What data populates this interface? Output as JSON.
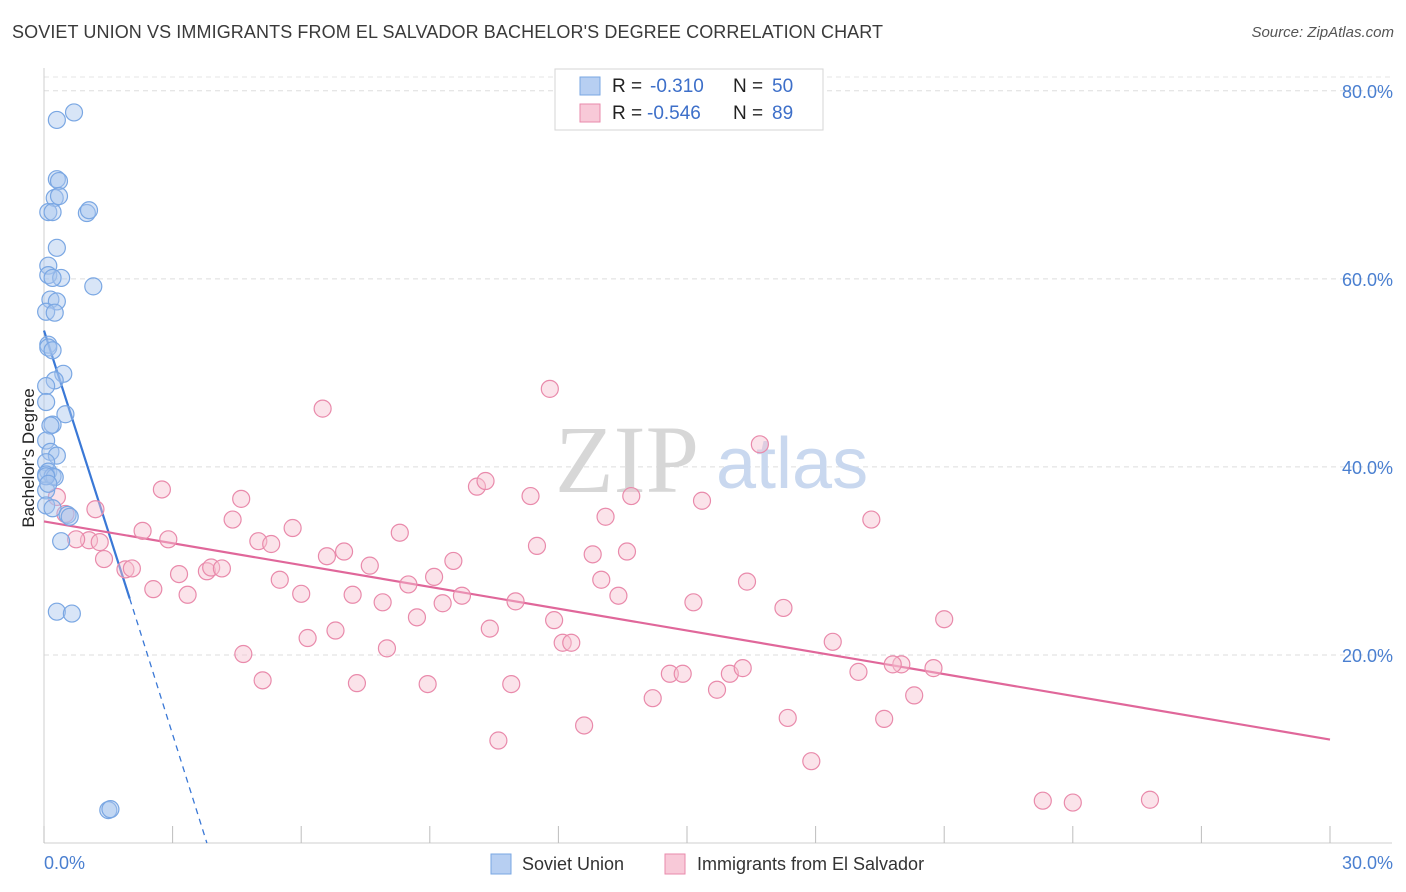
{
  "header": {
    "title": "SOVIET UNION VS IMMIGRANTS FROM EL SALVADOR BACHELOR'S DEGREE CORRELATION CHART",
    "source": "Source: ZipAtlas.com"
  },
  "watermark": {
    "zip": "ZIP",
    "atlas": "atlas"
  },
  "chart_data": {
    "type": "scatter",
    "title": "SOVIET UNION VS IMMIGRANTS FROM EL SALVADOR BACHELOR'S DEGREE CORRELATION CHART",
    "xlabel": "",
    "ylabel": "Bachelor's Degree",
    "xlim": [
      0,
      30
    ],
    "ylim": [
      0,
      82
    ],
    "x_tick_labels": [
      {
        "value": 0,
        "label": "0.0%"
      },
      {
        "value": 30,
        "label": "30.0%"
      }
    ],
    "y_tick_labels": [
      {
        "value": 20,
        "label": "20.0%"
      },
      {
        "value": 40,
        "label": "40.0%"
      },
      {
        "value": 60,
        "label": "60.0%"
      },
      {
        "value": 80,
        "label": "80.0%"
      }
    ],
    "x_minor_ticks": [
      0,
      3,
      6,
      9,
      12,
      15,
      18,
      21,
      24,
      27,
      30
    ],
    "grid": true,
    "legend_box": [
      {
        "r_label": "R =",
        "r_value": "-0.310",
        "n_label": "N =",
        "n_value": "50"
      },
      {
        "r_label": "R =",
        "r_value": "-0.546",
        "n_label": "N =",
        "n_value": "89"
      }
    ],
    "series": [
      {
        "name": "Soviet Union",
        "color": "#7aa7e3",
        "fill": "#a9c6ee",
        "trend": {
          "x0": 0.0,
          "y0": 54.5,
          "x1": 2.0,
          "y1": 26.0,
          "dash_x1": 3.8,
          "dash_y1": 0.0,
          "color": "#3a78d6"
        },
        "points": [
          [
            0.7,
            77.7
          ],
          [
            0.3,
            76.9
          ],
          [
            0.3,
            70.6
          ],
          [
            0.35,
            70.4
          ],
          [
            0.25,
            68.6
          ],
          [
            0.35,
            68.8
          ],
          [
            0.1,
            67.1
          ],
          [
            0.2,
            67.1
          ],
          [
            1.0,
            67.0
          ],
          [
            1.05,
            67.3
          ],
          [
            0.3,
            63.3
          ],
          [
            0.1,
            61.4
          ],
          [
            0.1,
            60.4
          ],
          [
            0.4,
            60.1
          ],
          [
            0.2,
            60.1
          ],
          [
            1.15,
            59.2
          ],
          [
            0.15,
            57.8
          ],
          [
            0.3,
            57.6
          ],
          [
            0.05,
            56.5
          ],
          [
            0.25,
            56.4
          ],
          [
            0.1,
            53.0
          ],
          [
            0.1,
            52.7
          ],
          [
            0.2,
            52.4
          ],
          [
            0.45,
            49.9
          ],
          [
            0.25,
            49.2
          ],
          [
            0.05,
            48.6
          ],
          [
            0.05,
            46.9
          ],
          [
            0.5,
            45.6
          ],
          [
            0.2,
            44.5
          ],
          [
            0.15,
            44.4
          ],
          [
            0.05,
            42.8
          ],
          [
            0.15,
            41.6
          ],
          [
            0.3,
            41.2
          ],
          [
            0.05,
            40.5
          ],
          [
            0.1,
            39.5
          ],
          [
            0.05,
            39.2
          ],
          [
            0.2,
            39.0
          ],
          [
            0.25,
            38.9
          ],
          [
            0.05,
            37.5
          ],
          [
            0.05,
            35.9
          ],
          [
            0.2,
            35.6
          ],
          [
            0.55,
            34.9
          ],
          [
            0.6,
            34.7
          ],
          [
            0.4,
            32.1
          ],
          [
            0.3,
            24.6
          ],
          [
            0.65,
            24.4
          ],
          [
            1.5,
            3.5
          ],
          [
            1.55,
            3.6
          ],
          [
            0.05,
            39.0
          ],
          [
            0.1,
            38.2
          ]
        ]
      },
      {
        "name": "Immigrants from El Salvador",
        "color": "#e98aab",
        "fill": "#f6c0d1",
        "trend": {
          "x0": 0.0,
          "y0": 34.2,
          "x1": 30.0,
          "y1": 11.0,
          "color": "#e0679a"
        },
        "points": [
          [
            0.3,
            36.8
          ],
          [
            0.5,
            35.0
          ],
          [
            1.2,
            35.5
          ],
          [
            1.05,
            32.2
          ],
          [
            0.75,
            32.3
          ],
          [
            1.3,
            32.0
          ],
          [
            1.4,
            30.2
          ],
          [
            1.9,
            29.1
          ],
          [
            2.05,
            29.2
          ],
          [
            2.3,
            33.2
          ],
          [
            2.9,
            32.3
          ],
          [
            2.55,
            27.0
          ],
          [
            2.75,
            37.6
          ],
          [
            3.15,
            28.6
          ],
          [
            3.35,
            26.4
          ],
          [
            3.8,
            28.9
          ],
          [
            3.9,
            29.3
          ],
          [
            4.15,
            29.2
          ],
          [
            4.4,
            34.4
          ],
          [
            4.6,
            36.6
          ],
          [
            4.65,
            20.1
          ],
          [
            5.0,
            32.1
          ],
          [
            5.1,
            17.3
          ],
          [
            5.3,
            31.8
          ],
          [
            5.5,
            28.0
          ],
          [
            5.8,
            33.5
          ],
          [
            6.0,
            26.5
          ],
          [
            6.15,
            21.8
          ],
          [
            6.5,
            46.2
          ],
          [
            6.6,
            30.5
          ],
          [
            6.8,
            22.6
          ],
          [
            7.0,
            31.0
          ],
          [
            7.2,
            26.4
          ],
          [
            7.3,
            17.0
          ],
          [
            7.6,
            29.5
          ],
          [
            7.9,
            25.6
          ],
          [
            8.0,
            20.7
          ],
          [
            8.3,
            33.0
          ],
          [
            8.5,
            27.5
          ],
          [
            8.7,
            24.0
          ],
          [
            8.95,
            16.9
          ],
          [
            9.1,
            28.3
          ],
          [
            9.3,
            25.5
          ],
          [
            9.55,
            30.0
          ],
          [
            9.75,
            26.3
          ],
          [
            10.1,
            37.9
          ],
          [
            10.3,
            38.5
          ],
          [
            10.4,
            22.8
          ],
          [
            10.6,
            10.9
          ],
          [
            10.9,
            16.9
          ],
          [
            11.0,
            25.7
          ],
          [
            11.35,
            36.9
          ],
          [
            11.5,
            31.6
          ],
          [
            11.8,
            48.3
          ],
          [
            11.9,
            23.7
          ],
          [
            12.1,
            21.3
          ],
          [
            12.3,
            21.3
          ],
          [
            12.6,
            12.5
          ],
          [
            12.8,
            30.7
          ],
          [
            13.0,
            28.0
          ],
          [
            13.1,
            34.7
          ],
          [
            13.4,
            26.3
          ],
          [
            13.6,
            31.0
          ],
          [
            13.7,
            36.9
          ],
          [
            14.2,
            15.4
          ],
          [
            14.6,
            18.0
          ],
          [
            14.9,
            18.0
          ],
          [
            15.15,
            25.6
          ],
          [
            15.35,
            36.4
          ],
          [
            15.7,
            16.3
          ],
          [
            16.0,
            18.0
          ],
          [
            16.3,
            18.6
          ],
          [
            16.4,
            27.8
          ],
          [
            16.7,
            42.4
          ],
          [
            17.25,
            25.0
          ],
          [
            17.35,
            13.3
          ],
          [
            17.9,
            8.7
          ],
          [
            18.4,
            21.4
          ],
          [
            19.0,
            18.2
          ],
          [
            19.3,
            34.4
          ],
          [
            19.6,
            13.2
          ],
          [
            20.0,
            19.0
          ],
          [
            20.3,
            15.7
          ],
          [
            20.75,
            18.6
          ],
          [
            21.0,
            23.8
          ],
          [
            23.3,
            4.5
          ],
          [
            24.0,
            4.3
          ],
          [
            25.8,
            4.6
          ],
          [
            19.8,
            19.0
          ]
        ]
      }
    ]
  },
  "bottom_legend": [
    {
      "label": "Soviet Union"
    },
    {
      "label": "Immigrants from El Salvador"
    }
  ]
}
